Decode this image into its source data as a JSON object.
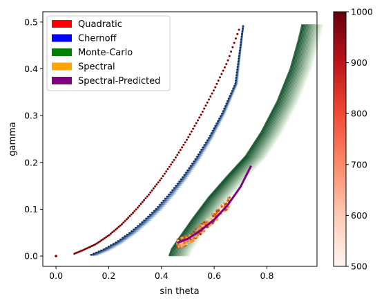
{
  "chart_data": {
    "type": "scatter",
    "xlabel": "sin theta",
    "ylabel": "gamma",
    "xlim": [
      -0.05,
      0.99
    ],
    "ylim": [
      -0.022,
      0.522
    ],
    "x_ticks": [
      "0.0",
      "0.2",
      "0.4",
      "0.6",
      "0.8"
    ],
    "x_tick_values": [
      0.0,
      0.2,
      0.4,
      0.6,
      0.8
    ],
    "y_ticks": [
      "0.0",
      "0.1",
      "0.2",
      "0.3",
      "0.4",
      "0.5"
    ],
    "y_tick_values": [
      0.0,
      0.1,
      0.2,
      0.3,
      0.4,
      0.5
    ],
    "grid": false,
    "legend_position": "top-left",
    "legend": [
      {
        "label": "Quadratic",
        "color": "#ff0000"
      },
      {
        "label": "Chernoff",
        "color": "#0000ff"
      },
      {
        "label": "Monte-Carlo",
        "color": "#008000"
      },
      {
        "label": "Spectral",
        "color": "#ffa500"
      },
      {
        "label": "Spectral-Predicted",
        "color": "#800080"
      }
    ],
    "colorbar": {
      "colormap": "Reds",
      "range": [
        500,
        1000
      ],
      "ticks": [
        "500",
        "600",
        "700",
        "800",
        "900",
        "1000"
      ],
      "tick_values": [
        500,
        600,
        700,
        800,
        900,
        1000
      ]
    },
    "series": [
      {
        "name": "Quadratic",
        "color": "#7f0000",
        "x": [
          0.0,
          0.07,
          0.1,
          0.15,
          0.2,
          0.25,
          0.3,
          0.35,
          0.4,
          0.45,
          0.5,
          0.55,
          0.6,
          0.65,
          0.7
        ],
        "y": [
          0.0,
          0.005,
          0.012,
          0.025,
          0.044,
          0.068,
          0.097,
          0.13,
          0.166,
          0.207,
          0.252,
          0.302,
          0.356,
          0.415,
          0.493
        ]
      },
      {
        "name": "Chernoff",
        "color": "#08306b",
        "x": [
          0.13,
          0.18,
          0.23,
          0.28,
          0.33,
          0.38,
          0.43,
          0.48,
          0.53,
          0.58,
          0.63,
          0.68,
          0.71
        ],
        "y": [
          0.002,
          0.014,
          0.03,
          0.05,
          0.074,
          0.101,
          0.133,
          0.168,
          0.208,
          0.253,
          0.305,
          0.368,
          0.493
        ]
      },
      {
        "name": "Monte-Carlo",
        "color": "#00441b",
        "x": [
          0.43,
          0.44,
          0.47,
          0.52,
          0.58,
          0.65,
          0.72,
          0.78,
          0.84,
          0.89,
          0.92,
          0.935
        ],
        "y": [
          0.0,
          0.015,
          0.04,
          0.08,
          0.125,
          0.17,
          0.213,
          0.265,
          0.33,
          0.4,
          0.46,
          0.495
        ]
      },
      {
        "name": "Spectral",
        "color": "#f16913",
        "x": [
          0.46,
          0.49,
          0.52,
          0.55,
          0.58,
          0.61,
          0.64,
          0.66
        ],
        "y": [
          0.025,
          0.033,
          0.043,
          0.057,
          0.072,
          0.088,
          0.105,
          0.118
        ]
      },
      {
        "name": "Spectral-Predicted",
        "color": "#800080",
        "x": [
          0.46,
          0.5,
          0.55,
          0.6,
          0.65,
          0.7,
          0.74
        ],
        "y": [
          0.028,
          0.037,
          0.055,
          0.078,
          0.108,
          0.148,
          0.193
        ]
      }
    ]
  }
}
